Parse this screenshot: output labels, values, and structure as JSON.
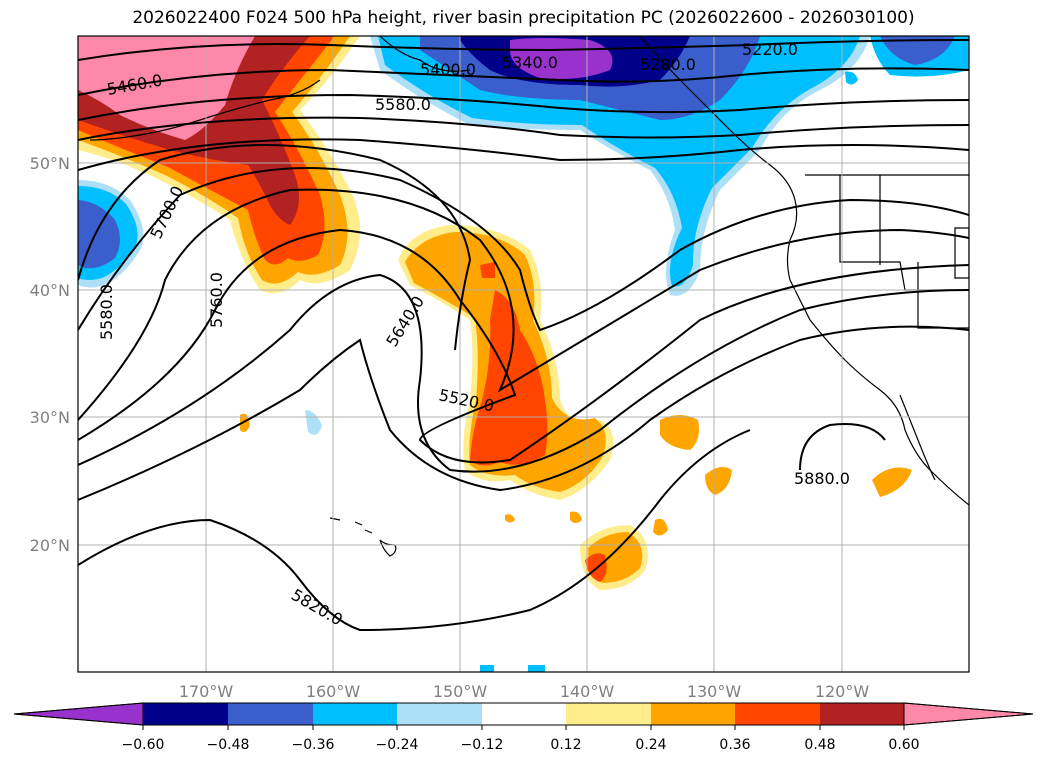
{
  "title": "2026022400 F024 500 hPa height, river basin precipitation PC (2026022600 - 2026030100)",
  "axes": {
    "lon_labels": [
      "170°W",
      "160°W",
      "150°W",
      "140°W",
      "130°W",
      "120°W"
    ],
    "lat_labels": [
      "50°N",
      "40°N",
      "30°N",
      "20°N"
    ],
    "lon_range": [
      -180,
      -110
    ],
    "lat_range": [
      10,
      60
    ]
  },
  "colorbar": {
    "levels": [
      "−0.60",
      "−0.48",
      "−0.36",
      "−0.24",
      "−0.12",
      "0.12",
      "0.24",
      "0.36",
      "0.48",
      "0.60"
    ],
    "colors": [
      "#9932CC",
      "#00008B",
      "#3A5FCD",
      "#00BFFF",
      "#ADDFF7",
      "#FFFFFF",
      "#FFEC8B",
      "#FFA500",
      "#FF4500",
      "#B22222",
      "#FF88AA"
    ]
  },
  "contour_labels": [
    "5460.0",
    "5400.0",
    "5340.0",
    "5280.0",
    "5220.0",
    "5580.0",
    "5700.0",
    "5580.0",
    "5760.0",
    "5640.0",
    "5520.0",
    "5880.0",
    "5820.0"
  ]
}
